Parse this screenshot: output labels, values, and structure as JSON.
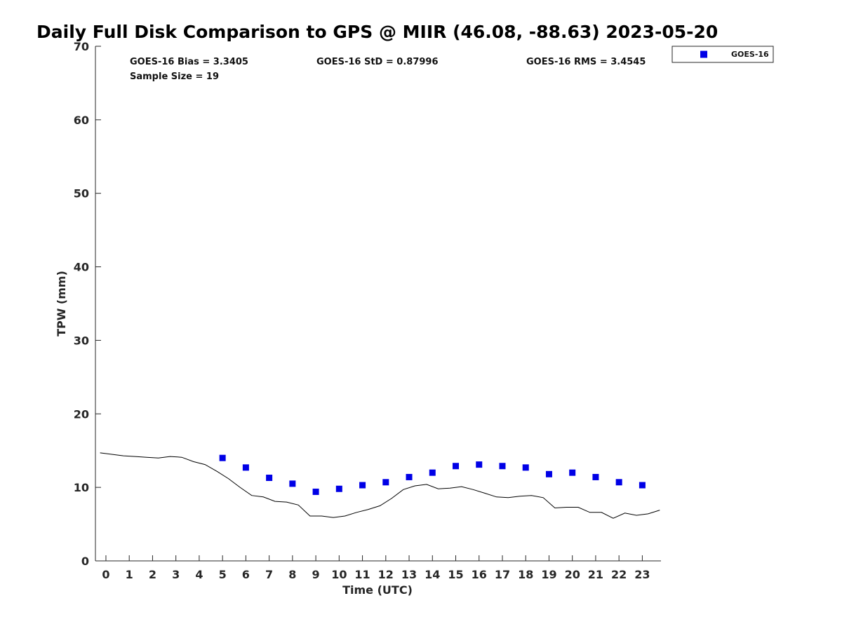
{
  "chart_data": {
    "type": "scatter",
    "title": "Daily Full Disk Comparison to GPS @ MIIR (46.08, -88.63) 2023-05-20",
    "xlabel": "Time (UTC)",
    "ylabel": "TPW (mm)",
    "xlim": [
      -0.45,
      23.8
    ],
    "ylim": [
      0,
      70
    ],
    "xticks": [
      "0",
      "1",
      "2",
      "3",
      "4",
      "5",
      "6",
      "7",
      "8",
      "9",
      "10",
      "11",
      "12",
      "13",
      "14",
      "15",
      "16",
      "17",
      "18",
      "19",
      "20",
      "21",
      "22",
      "23"
    ],
    "yticks": [
      "0",
      "10",
      "20",
      "30",
      "40",
      "50",
      "60",
      "70"
    ],
    "grid": false,
    "legend_position": "top-right",
    "stats": {
      "bias": "GOES-16 Bias = 3.3405",
      "std": "GOES-16 StD = 0.87996",
      "rms": "GOES-16 RMS = 3.4545",
      "sample": "Sample Size = 19"
    },
    "series": [
      {
        "name": "GOES-16",
        "type": "scatter",
        "marker": "square",
        "color": "#0000e6",
        "x": [
          5,
          6,
          7,
          8,
          9,
          10,
          11,
          12,
          13,
          14,
          15,
          16,
          17,
          18,
          19,
          20,
          21,
          22,
          23
        ],
        "y": [
          14.0,
          12.7,
          11.3,
          10.5,
          9.4,
          9.8,
          10.3,
          10.7,
          11.4,
          12.0,
          12.9,
          13.1,
          12.9,
          12.7,
          11.8,
          12.0,
          11.4,
          10.7,
          10.3
        ]
      },
      {
        "type": "line",
        "color": "#000000",
        "x": [
          -0.25,
          0.25,
          0.75,
          1.25,
          1.75,
          2.25,
          2.75,
          3.25,
          3.75,
          4.25,
          4.75,
          5.25,
          5.75,
          6.25,
          6.75,
          7.25,
          7.75,
          8.25,
          8.75,
          9.25,
          9.75,
          10.25,
          10.75,
          11.25,
          11.75,
          12.25,
          12.75,
          13.25,
          13.75,
          14.25,
          14.75,
          15.25,
          15.75,
          16.25,
          16.75,
          17.25,
          17.75,
          18.25,
          18.75,
          19.25,
          19.75,
          20.25,
          20.75,
          21.25,
          21.75,
          22.25,
          22.75,
          23.25,
          23.75
        ],
        "y": [
          14.7,
          14.5,
          14.3,
          14.2,
          14.1,
          14.0,
          14.2,
          14.1,
          13.5,
          13.1,
          12.2,
          11.2,
          10.0,
          8.9,
          8.7,
          8.1,
          8.0,
          7.6,
          6.1,
          6.1,
          5.9,
          6.1,
          6.6,
          7.0,
          7.5,
          8.5,
          9.7,
          10.2,
          10.4,
          9.8,
          9.9,
          10.1,
          9.7,
          9.2,
          8.7,
          8.6,
          8.8,
          8.9,
          8.6,
          7.2,
          7.3,
          7.3,
          6.6,
          6.6,
          5.8,
          6.5,
          6.2,
          6.4,
          6.9
        ]
      }
    ]
  },
  "colors": {
    "marker": "#0000e6",
    "line": "#000000",
    "axis": "#262626"
  }
}
